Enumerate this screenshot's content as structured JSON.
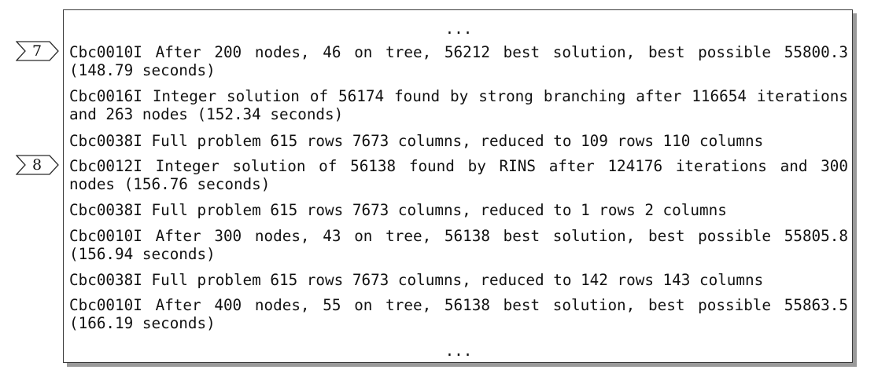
{
  "log": {
    "top_ellipsis": "...",
    "bottom_ellipsis": "...",
    "lines": [
      {
        "text": "Cbc0010I After 200 nodes, 46 on tree, 56212 best solution, best possible 55800.3 (148.79 seconds)"
      },
      {
        "text": "Cbc0016I Integer solution of 56174 found by strong branching after 116654 iterations and 263 nodes (152.34 seconds)"
      },
      {
        "text": "Cbc0038I Full problem 615 rows 7673 columns, reduced to 109 rows 110 columns"
      },
      {
        "text": "Cbc0012I Integer solution of 56138 found by RINS after 124176 iterations and 300 nodes (156.76 seconds)"
      },
      {
        "text": "Cbc0038I Full problem 615 rows 7673 columns, reduced to 1 rows 2 columns"
      },
      {
        "text": "Cbc0010I After 300 nodes, 43 on tree, 56138 best solution, best possible 55805.8 (156.94 seconds)"
      },
      {
        "text": "Cbc0038I Full problem 615 rows 7673 columns, reduced to 142 rows 143 columns"
      },
      {
        "text": "Cbc0010I After 400 nodes, 55 on tree, 56138 best solution, best possible 55863.5 (166.19 seconds)"
      }
    ]
  },
  "markers": [
    {
      "label": "7"
    },
    {
      "label": "8"
    }
  ]
}
